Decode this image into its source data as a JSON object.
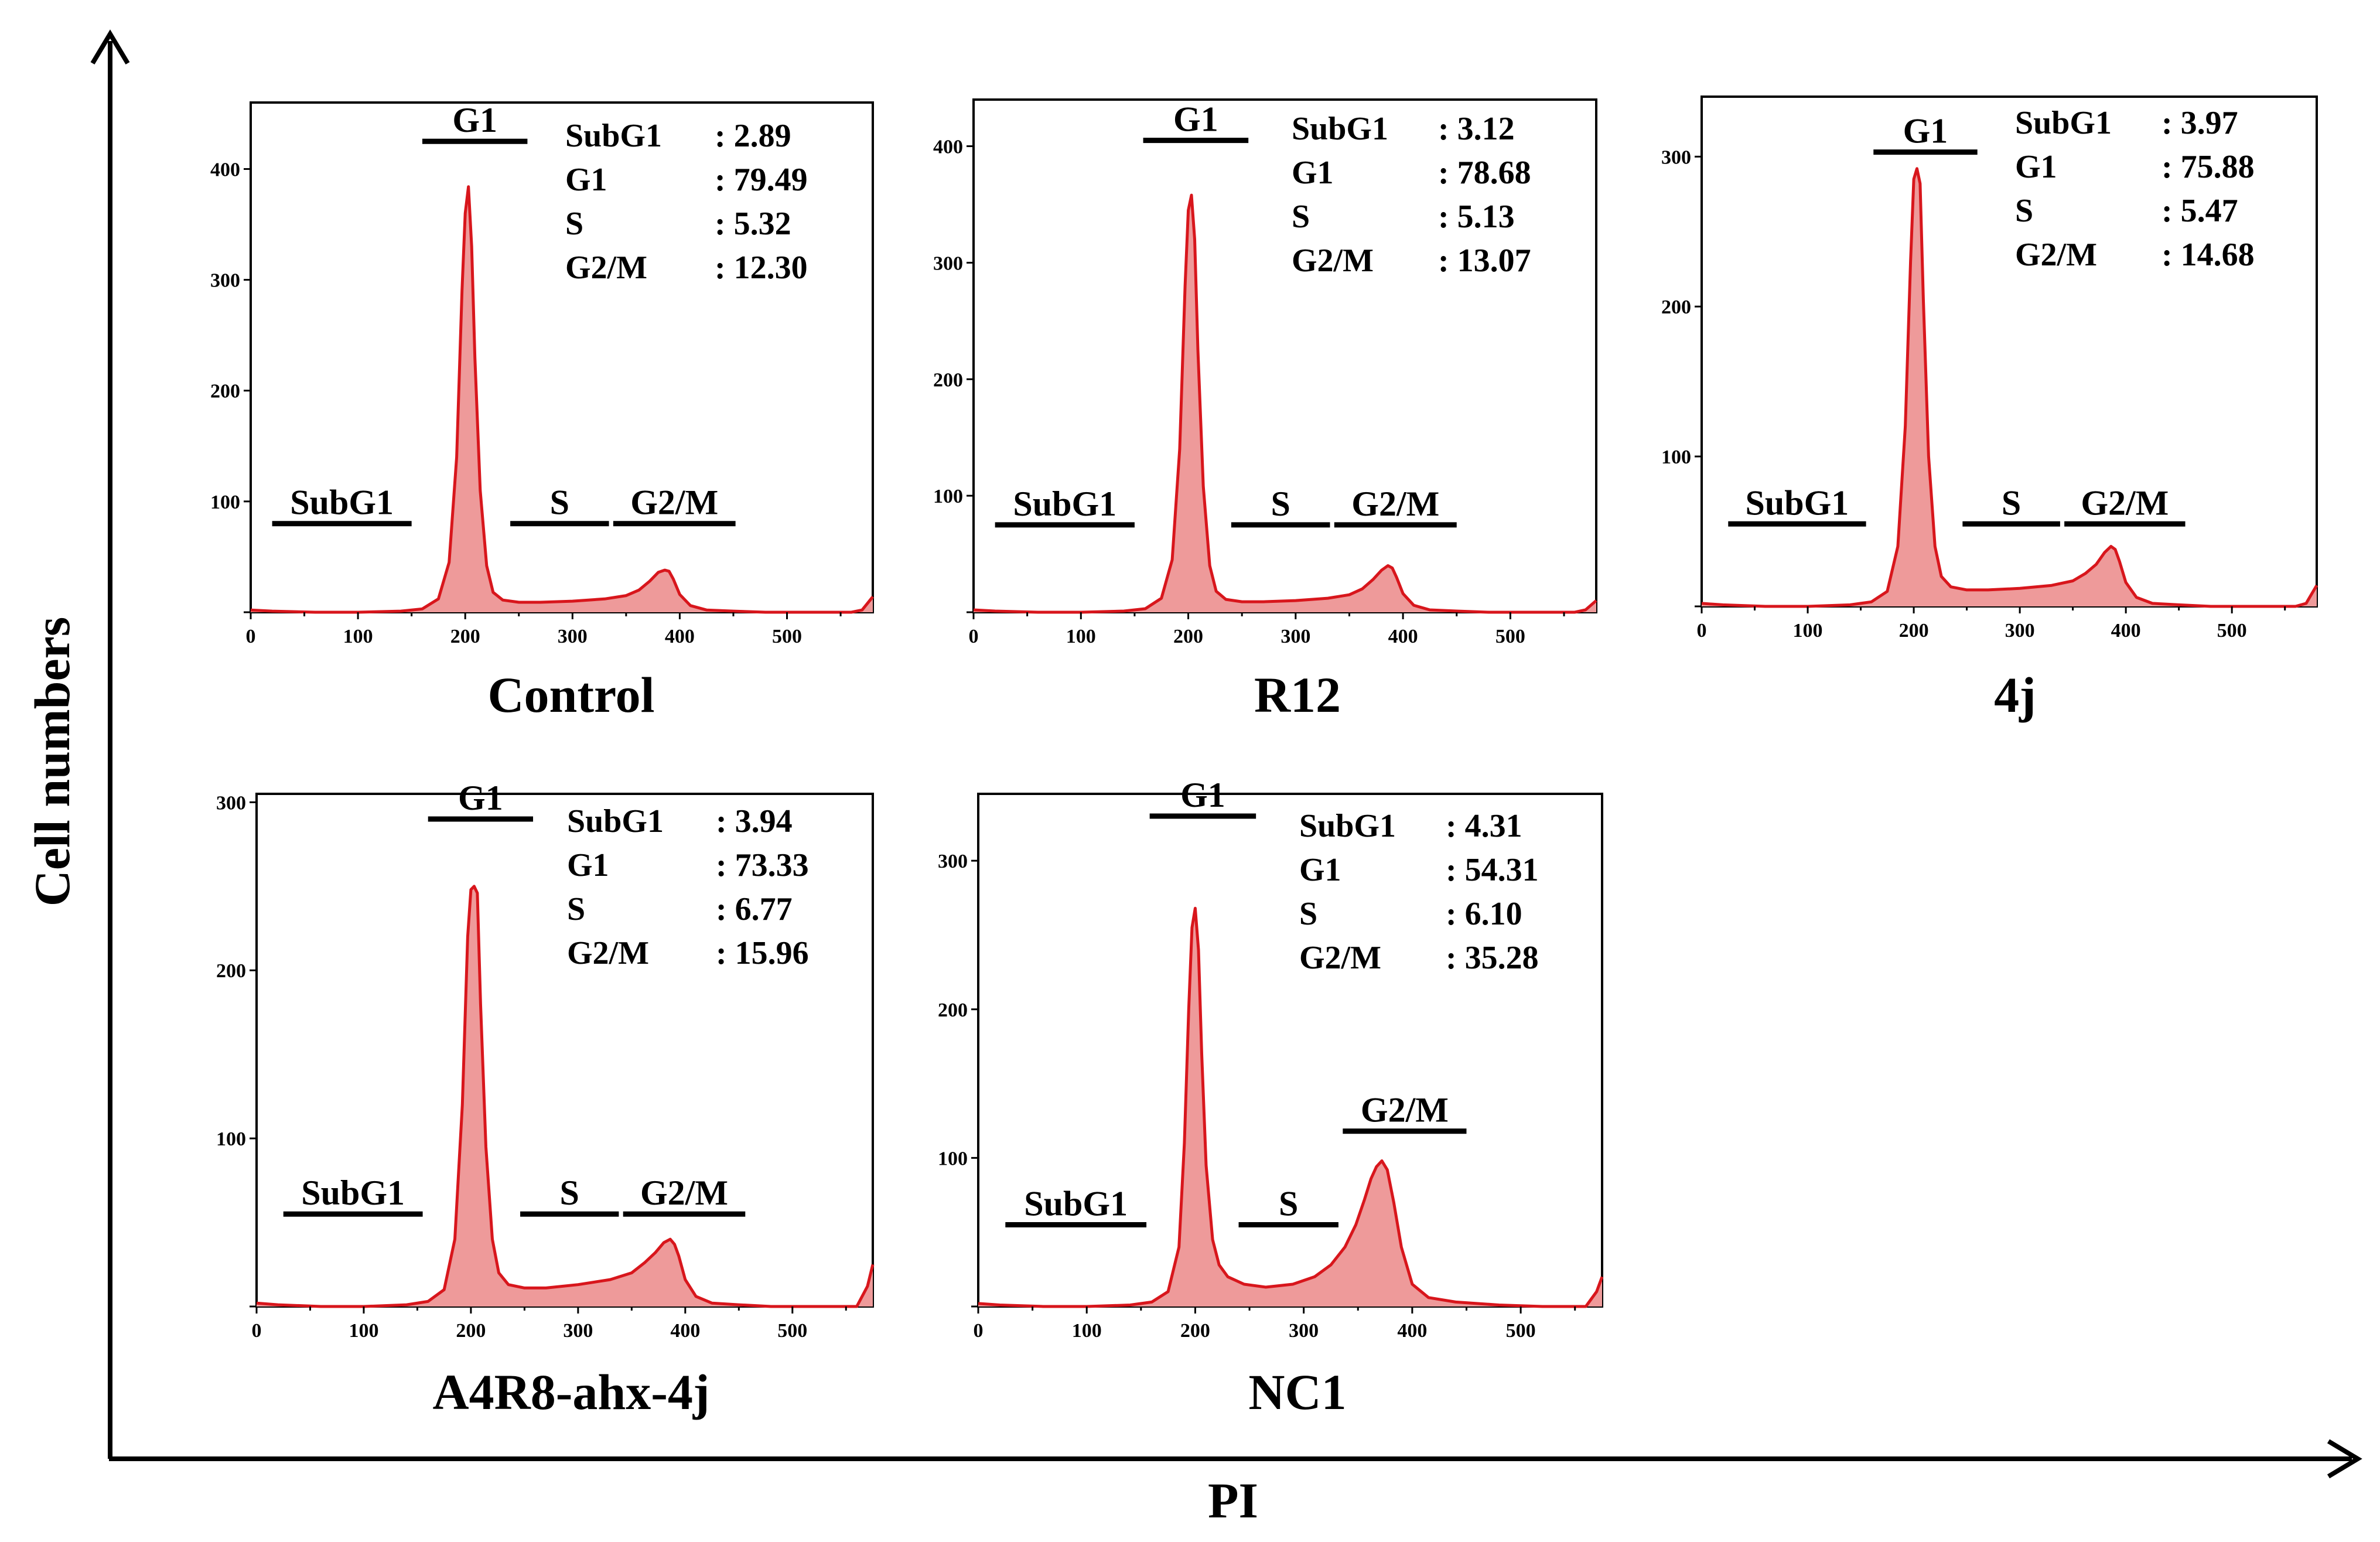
{
  "figure": {
    "y_axis_title": "Cell numbers",
    "x_axis_title": "PI"
  },
  "chart_data": [
    {
      "type": "area",
      "title": "Control",
      "xlabel": "PI",
      "ylabel": "Cell numbers",
      "xlim": [
        0,
        580
      ],
      "ylim": [
        0,
        460
      ],
      "x_ticks": [
        0,
        100,
        200,
        300,
        400,
        500
      ],
      "y_ticks": [
        100,
        200,
        300,
        400
      ],
      "x": [
        0,
        20,
        60,
        100,
        140,
        160,
        175,
        185,
        192,
        197,
        200,
        203,
        206,
        209,
        214,
        220,
        226,
        235,
        250,
        270,
        300,
        330,
        350,
        362,
        372,
        380,
        386,
        390,
        394,
        400,
        410,
        425,
        450,
        480,
        520,
        560,
        570,
        575,
        580
      ],
      "values": [
        2,
        1,
        0,
        0,
        1,
        3,
        12,
        45,
        140,
        290,
        360,
        384,
        330,
        230,
        110,
        42,
        18,
        11,
        9,
        9,
        10,
        12,
        15,
        20,
        28,
        36,
        38,
        37,
        30,
        16,
        6,
        2,
        1,
        0,
        0,
        0,
        2,
        8,
        14
      ],
      "stats": [
        {
          "label": "SubG1",
          "sep": ":",
          "value": "2.89"
        },
        {
          "label": "G1",
          "sep": ":",
          "value": "79.49"
        },
        {
          "label": "S",
          "sep": ":",
          "value": "5.32"
        },
        {
          "label": "G2/M",
          "sep": ":",
          "value": "12.30"
        }
      ],
      "phase_labels": [
        {
          "label": "SubG1",
          "x_start": 20,
          "x_end": 150,
          "level": 80
        },
        {
          "label": "G1",
          "x_start": 160,
          "x_end": 258,
          "level": 425
        },
        {
          "label": "S",
          "x_start": 242,
          "x_end": 334,
          "level": 80
        },
        {
          "label": "G2/M",
          "x_start": 338,
          "x_end": 452,
          "level": 80
        }
      ]
    },
    {
      "type": "area",
      "title": "R12",
      "xlabel": "PI",
      "ylabel": "Cell numbers",
      "xlim": [
        0,
        580
      ],
      "ylim": [
        0,
        440
      ],
      "x_ticks": [
        0,
        100,
        200,
        300,
        400,
        500
      ],
      "y_ticks": [
        100,
        200,
        300,
        400
      ],
      "x": [
        0,
        20,
        60,
        100,
        140,
        160,
        175,
        185,
        192,
        197,
        200,
        203,
        206,
        209,
        214,
        220,
        226,
        235,
        250,
        270,
        300,
        330,
        350,
        362,
        372,
        380,
        386,
        390,
        394,
        400,
        410,
        425,
        450,
        480,
        520,
        560,
        570,
        575,
        580
      ],
      "values": [
        2,
        1,
        0,
        0,
        1,
        3,
        12,
        45,
        140,
        280,
        345,
        358,
        320,
        225,
        108,
        40,
        18,
        11,
        9,
        9,
        10,
        12,
        15,
        20,
        28,
        36,
        40,
        38,
        30,
        16,
        6,
        2,
        1,
        0,
        0,
        0,
        2,
        6,
        10
      ],
      "stats": [
        {
          "label": "SubG1",
          "sep": ":",
          "value": "3.12"
        },
        {
          "label": "G1",
          "sep": ":",
          "value": "78.68"
        },
        {
          "label": "S",
          "sep": ":",
          "value": "5.13"
        },
        {
          "label": "G2/M",
          "sep": ":",
          "value": "13.07"
        }
      ],
      "phase_labels": [
        {
          "label": "SubG1",
          "x_start": 20,
          "x_end": 150,
          "level": 75
        },
        {
          "label": "G1",
          "x_start": 158,
          "x_end": 256,
          "level": 405
        },
        {
          "label": "S",
          "x_start": 240,
          "x_end": 332,
          "level": 75
        },
        {
          "label": "G2/M",
          "x_start": 336,
          "x_end": 450,
          "level": 75
        }
      ]
    },
    {
      "type": "area",
      "title": "4j",
      "xlabel": "PI",
      "ylabel": "Cell numbers",
      "xlim": [
        0,
        580
      ],
      "ylim": [
        0,
        340
      ],
      "x_ticks": [
        0,
        100,
        200,
        300,
        400,
        500
      ],
      "y_ticks": [
        100,
        200,
        300
      ],
      "x": [
        0,
        20,
        60,
        100,
        140,
        160,
        175,
        185,
        192,
        197,
        200,
        203,
        206,
        209,
        214,
        220,
        226,
        235,
        250,
        270,
        300,
        330,
        350,
        362,
        372,
        380,
        386,
        390,
        394,
        400,
        410,
        425,
        450,
        480,
        520,
        560,
        570,
        575,
        580
      ],
      "values": [
        2,
        1,
        0,
        0,
        1,
        3,
        10,
        40,
        120,
        230,
        285,
        292,
        282,
        205,
        100,
        40,
        20,
        13,
        11,
        11,
        12,
        14,
        17,
        22,
        28,
        36,
        40,
        38,
        30,
        16,
        6,
        2,
        1,
        0,
        0,
        0,
        2,
        8,
        14
      ],
      "stats": [
        {
          "label": "SubG1",
          "sep": ":",
          "value": "3.97"
        },
        {
          "label": "G1",
          "sep": ":",
          "value": "75.88"
        },
        {
          "label": "S",
          "sep": ":",
          "value": "5.47"
        },
        {
          "label": "G2/M",
          "sep": ":",
          "value": "14.68"
        }
      ],
      "phase_labels": [
        {
          "label": "SubG1",
          "x_start": 25,
          "x_end": 155,
          "level": 55
        },
        {
          "label": "G1",
          "x_start": 162,
          "x_end": 260,
          "level": 303
        },
        {
          "label": "S",
          "x_start": 246,
          "x_end": 338,
          "level": 55
        },
        {
          "label": "G2/M",
          "x_start": 342,
          "x_end": 456,
          "level": 55
        }
      ]
    },
    {
      "type": "area",
      "title": "A4R8-ahx-4j",
      "xlabel": "PI",
      "ylabel": "Cell numbers",
      "xlim": [
        0,
        575
      ],
      "ylim": [
        0,
        305
      ],
      "x_ticks": [
        0,
        100,
        200,
        300,
        400,
        500
      ],
      "y_ticks": [
        100,
        200,
        300
      ],
      "x": [
        0,
        20,
        60,
        100,
        140,
        160,
        175,
        185,
        192,
        197,
        200,
        203,
        206,
        209,
        214,
        220,
        226,
        235,
        250,
        270,
        300,
        330,
        350,
        362,
        372,
        380,
        386,
        390,
        394,
        400,
        410,
        425,
        450,
        480,
        520,
        560,
        570,
        575
      ],
      "values": [
        2,
        1,
        0,
        0,
        1,
        3,
        10,
        40,
        120,
        220,
        248,
        250,
        246,
        180,
        95,
        40,
        20,
        13,
        11,
        11,
        13,
        16,
        20,
        26,
        32,
        38,
        40,
        37,
        30,
        16,
        6,
        2,
        1,
        0,
        0,
        0,
        12,
        25
      ],
      "stats": [
        {
          "label": "SubG1",
          "sep": ":",
          "value": "3.94"
        },
        {
          "label": "G1",
          "sep": ":",
          "value": "73.33"
        },
        {
          "label": "S",
          "sep": ":",
          "value": "6.77"
        },
        {
          "label": "G2/M",
          "sep": ":",
          "value": "15.96"
        }
      ],
      "phase_labels": [
        {
          "label": "SubG1",
          "x_start": 25,
          "x_end": 155,
          "level": 55
        },
        {
          "label": "G1",
          "x_start": 160,
          "x_end": 258,
          "level": 290
        },
        {
          "label": "S",
          "x_start": 246,
          "x_end": 338,
          "level": 55
        },
        {
          "label": "G2/M",
          "x_start": 342,
          "x_end": 456,
          "level": 55
        }
      ]
    },
    {
      "type": "area",
      "title": "NC1",
      "xlabel": "PI",
      "ylabel": "Cell numbers",
      "xlim": [
        0,
        575
      ],
      "ylim": [
        0,
        345
      ],
      "x_ticks": [
        0,
        100,
        200,
        300,
        400,
        500
      ],
      "y_ticks": [
        100,
        200,
        300
      ],
      "x": [
        0,
        20,
        60,
        100,
        140,
        160,
        175,
        185,
        190,
        194,
        197,
        200,
        203,
        206,
        210,
        216,
        222,
        230,
        245,
        265,
        290,
        310,
        325,
        338,
        348,
        356,
        362,
        367,
        372,
        377,
        383,
        390,
        400,
        415,
        440,
        480,
        520,
        560,
        570,
        575
      ],
      "values": [
        2,
        1,
        0,
        0,
        1,
        3,
        10,
        40,
        110,
        200,
        255,
        268,
        240,
        170,
        95,
        45,
        28,
        20,
        15,
        13,
        15,
        20,
        28,
        40,
        55,
        72,
        86,
        94,
        98,
        92,
        70,
        40,
        15,
        6,
        3,
        1,
        0,
        0,
        10,
        20
      ],
      "stats": [
        {
          "label": "SubG1",
          "sep": ":",
          "value": "4.31"
        },
        {
          "label": "G1",
          "sep": ":",
          "value": "54.31"
        },
        {
          "label": "S",
          "sep": ":",
          "value": "6.10"
        },
        {
          "label": "G2/M",
          "sep": ":",
          "value": "35.28"
        }
      ],
      "phase_labels": [
        {
          "label": "SubG1",
          "x_start": 25,
          "x_end": 155,
          "level": 55
        },
        {
          "label": "G1",
          "x_start": 158,
          "x_end": 256,
          "level": 330
        },
        {
          "label": "S",
          "x_start": 240,
          "x_end": 332,
          "level": 55
        },
        {
          "label": "G2/M",
          "x_start": 336,
          "x_end": 450,
          "level": 118
        }
      ]
    }
  ]
}
